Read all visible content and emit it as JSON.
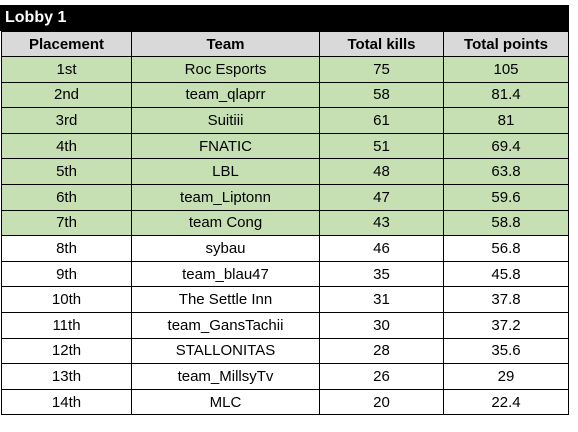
{
  "title": "Lobby 1",
  "colors": {
    "title_bg": "#000000",
    "title_text": "#ffffff",
    "header_bg": "#d9d9d9",
    "qualified_bg": "#c6e0b4",
    "other_bg": "#ffffff"
  },
  "columns": [
    "Placement",
    "Team",
    "Total kills",
    "Total points"
  ],
  "rows": [
    {
      "placement": "1st",
      "team": "Roc Esports",
      "kills": "75",
      "points": "105",
      "highlighted": true
    },
    {
      "placement": "2nd",
      "team": "team_qlaprr",
      "kills": "58",
      "points": "81.4",
      "highlighted": true
    },
    {
      "placement": "3rd",
      "team": "Suitiii",
      "kills": "61",
      "points": "81",
      "highlighted": true
    },
    {
      "placement": "4th",
      "team": "FNATIC",
      "kills": "51",
      "points": "69.4",
      "highlighted": true
    },
    {
      "placement": "5th",
      "team": "LBL",
      "kills": "48",
      "points": "63.8",
      "highlighted": true
    },
    {
      "placement": "6th",
      "team": "team_Liptonn",
      "kills": "47",
      "points": "59.6",
      "highlighted": true
    },
    {
      "placement": "7th",
      "team": "team Cong",
      "kills": "43",
      "points": "58.8",
      "highlighted": true
    },
    {
      "placement": "8th",
      "team": "sybau",
      "kills": "46",
      "points": "56.8",
      "highlighted": false
    },
    {
      "placement": "9th",
      "team": "team_blau47",
      "kills": "35",
      "points": "45.8",
      "highlighted": false
    },
    {
      "placement": "10th",
      "team": "The Settle Inn",
      "kills": "31",
      "points": "37.8",
      "highlighted": false
    },
    {
      "placement": "11th",
      "team": "team_GansTachii",
      "kills": "30",
      "points": "37.2",
      "highlighted": false
    },
    {
      "placement": "12th",
      "team": "STALLONITAS",
      "kills": "28",
      "points": "35.6",
      "highlighted": false
    },
    {
      "placement": "13th",
      "team": "team_MillsyTv",
      "kills": "26",
      "points": "29",
      "highlighted": false
    },
    {
      "placement": "14th",
      "team": "MLC",
      "kills": "20",
      "points": "22.4",
      "highlighted": false
    }
  ]
}
